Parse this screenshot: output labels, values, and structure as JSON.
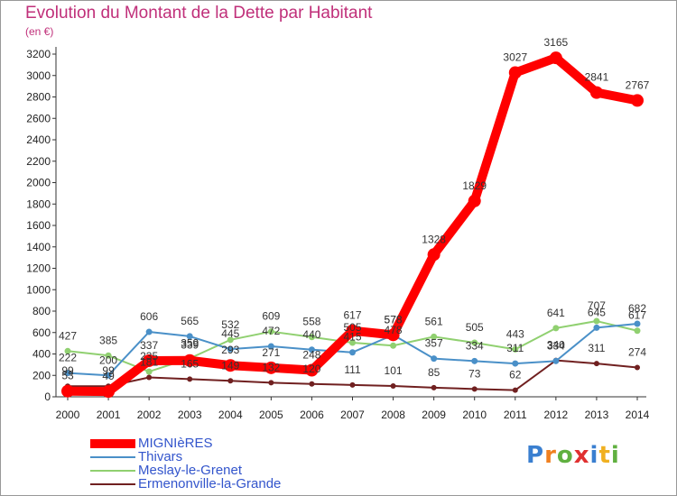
{
  "header": {
    "title": "Evolution du Montant de la Dette par Habitant",
    "subtitle": "(en €)",
    "title_color": "#c0307a"
  },
  "chart_data": {
    "type": "line",
    "title": "Evolution du Montant de la Dette par Habitant",
    "subtitle": "(en €)",
    "xlabel": "",
    "ylabel": "",
    "categories": [
      "2000",
      "2001",
      "2002",
      "2003",
      "2004",
      "2005",
      "2006",
      "2007",
      "2008",
      "2009",
      "2010",
      "2011",
      "2012",
      "2013",
      "2014"
    ],
    "y_ticks": [
      0,
      200,
      400,
      600,
      800,
      1000,
      1200,
      1400,
      1600,
      1800,
      2000,
      2200,
      2400,
      2600,
      2800,
      3000,
      3200
    ],
    "ylim": [
      0,
      3200
    ],
    "grid": false,
    "legend_position": "bottom-left",
    "series": [
      {
        "name": "MIGNIèRES",
        "color": "#ff0000",
        "values": [
          53,
          49,
          337,
          339,
          293,
          271,
          248,
          617,
          578,
          1328,
          1829,
          3027,
          3165,
          2841,
          2767
        ]
      },
      {
        "name": "Thivars",
        "color": "#4a90c8",
        "values": [
          222,
          200,
          606,
          565,
          445,
          472,
          440,
          415,
          578,
          357,
          334,
          311,
          334,
          645,
          682
        ]
      },
      {
        "name": "Meslay-le-Grenet",
        "color": "#90d070",
        "values": [
          427,
          385,
          235,
          359,
          532,
          609,
          558,
          505,
          478,
          561,
          505,
          443,
          641,
          707,
          617
        ]
      },
      {
        "name": "Ermenonville-la-Grande",
        "color": "#702020",
        "values": [
          99,
          99,
          181,
          165,
          149,
          132,
          120,
          111,
          101,
          85,
          73,
          62,
          340,
          311,
          274
        ]
      }
    ],
    "data_labels": [
      {
        "series": "MIGNIèRES",
        "values": [
          "53",
          "49",
          "337",
          "339",
          "293",
          "271",
          "248",
          "617",
          "578",
          "1328",
          "1829",
          "3027",
          "3165",
          "2841",
          "2767"
        ]
      },
      {
        "series": "Thivars",
        "values": [
          "222",
          "200",
          "606",
          "565",
          "445",
          "472",
          "440",
          "415",
          "578",
          "357",
          "334",
          "311",
          "334",
          "645",
          "682"
        ]
      },
      {
        "series": "Meslay-le-Grenet",
        "values": [
          "427",
          "385",
          "235",
          "359",
          "532",
          "609",
          "558",
          "505",
          "478",
          "561",
          "505",
          "443",
          "641",
          "707",
          "617"
        ]
      },
      {
        "series": "Ermenonville-la-Grande",
        "values": [
          "99",
          "99",
          "181",
          "165",
          "149",
          "132",
          "120",
          "111",
          "101",
          "85",
          "73",
          "62",
          "340",
          "311",
          "274"
        ]
      }
    ]
  },
  "legend": {
    "items": [
      {
        "label": "MIGNIèRES",
        "color": "#ff0000",
        "thickness": "heavy"
      },
      {
        "label": "Thivars",
        "color": "#4a90c8",
        "thickness": "light"
      },
      {
        "label": "Meslay-le-Grenet",
        "color": "#90d070",
        "thickness": "light"
      },
      {
        "label": "Ermenonville-la-Grande",
        "color": "#702020",
        "thickness": "light"
      }
    ],
    "text_color": "#3355cc"
  },
  "logo": {
    "letters": [
      "P",
      "r",
      "o",
      "x",
      "i",
      "t",
      "i"
    ],
    "colors": [
      "#3a7fd0",
      "#f08020",
      "#60b040",
      "#e03030",
      "#3a7fd0",
      "#f0b020",
      "#60b040"
    ]
  }
}
